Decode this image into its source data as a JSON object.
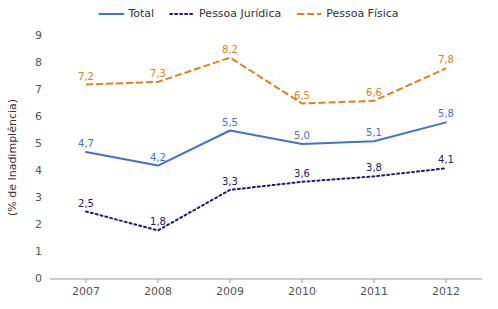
{
  "chart_data": {
    "type": "line",
    "x": [
      2007,
      2008,
      2009,
      2010,
      2011,
      2012
    ],
    "xlim": [
      2006.5,
      2012.5
    ],
    "xticks": [
      2007,
      2008,
      2009,
      2010,
      2011,
      2012
    ],
    "ylabel": "(% de Inadimplência)",
    "ylim": [
      0,
      9
    ],
    "yticks": [
      0,
      1,
      2,
      3,
      4,
      5,
      6,
      7,
      8,
      9
    ],
    "grid": false,
    "legend": "top",
    "data_labels": true,
    "series": [
      {
        "name": "Total",
        "color": "#4472C4",
        "line_style": "solid",
        "values": [
          4.7,
          4.2,
          5.5,
          5.0,
          5.1,
          5.8
        ],
        "value_labels": [
          "4,7",
          "4,2",
          "5,5",
          "5,0",
          "5,1",
          "5,8"
        ]
      },
      {
        "name": "Pessoa Jurídica",
        "color": "#1A1A6E",
        "line_style": "dotted",
        "values": [
          2.5,
          1.8,
          3.3,
          3.6,
          3.8,
          4.1
        ],
        "value_labels": [
          "2,5",
          "1,8",
          "3,3",
          "3,6",
          "3,8",
          "4,1"
        ]
      },
      {
        "name": "Pessoa Física",
        "color": "#E08020",
        "line_style": "dashed",
        "values": [
          7.2,
          7.3,
          8.2,
          6.5,
          6.6,
          7.8
        ],
        "value_labels": [
          "7,2",
          "7,3",
          "8,2",
          "6,5",
          "6,6",
          "7,8"
        ]
      }
    ]
  }
}
